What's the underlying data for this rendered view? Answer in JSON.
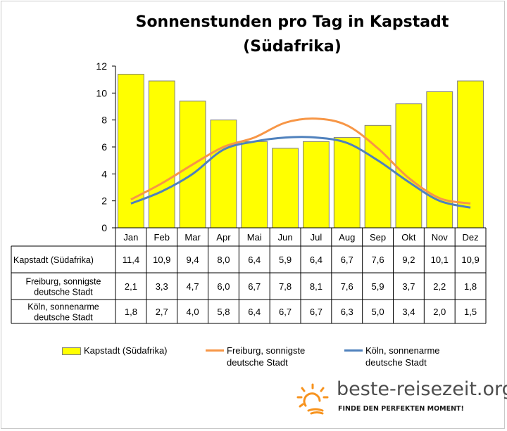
{
  "title": "Sonnenstunden pro Tag in Kapstadt (Südafrika)",
  "chart_data": {
    "type": "bar",
    "title": "Sonnenstunden pro Tag in Kapstadt (Südafrika)",
    "categories": [
      "Jan",
      "Feb",
      "Mar",
      "Apr",
      "Mai",
      "Jun",
      "Jul",
      "Aug",
      "Sep",
      "Okt",
      "Nov",
      "Dez"
    ],
    "ylim": [
      0,
      12
    ],
    "yticks": [
      0,
      2,
      4,
      6,
      8,
      10,
      12
    ],
    "grid": false,
    "legend_position": "bottom",
    "series": [
      {
        "name": "Kapstadt (Südafrika)",
        "type": "bar",
        "color": "#ffff00",
        "values": [
          11.4,
          10.9,
          9.4,
          8.0,
          6.4,
          5.9,
          6.4,
          6.7,
          7.6,
          9.2,
          10.1,
          10.9
        ],
        "labels": [
          "11,4",
          "10,9",
          "9,4",
          "8,0",
          "6,4",
          "5,9",
          "6,4",
          "6,7",
          "7,6",
          "9,2",
          "10,1",
          "10,9"
        ]
      },
      {
        "name": "Freiburg, sonnigste deutsche Stadt",
        "type": "line",
        "color": "#f79646",
        "values": [
          2.1,
          3.3,
          4.7,
          6.0,
          6.7,
          7.8,
          8.1,
          7.6,
          5.9,
          3.7,
          2.2,
          1.8
        ],
        "labels": [
          "2,1",
          "3,3",
          "4,7",
          "6,0",
          "6,7",
          "7,8",
          "8,1",
          "7,6",
          "5,9",
          "3,7",
          "2,2",
          "1,8"
        ]
      },
      {
        "name": "Köln, sonnenarme deutsche Stadt",
        "type": "line",
        "color": "#4f81bd",
        "values": [
          1.8,
          2.7,
          4.0,
          5.8,
          6.4,
          6.7,
          6.7,
          6.3,
          5.0,
          3.4,
          2.0,
          1.5
        ],
        "labels": [
          "1,8",
          "2,7",
          "4,0",
          "5,8",
          "6,4",
          "6,7",
          "6,7",
          "6,3",
          "5,0",
          "3,4",
          "2,0",
          "1,5"
        ]
      }
    ]
  },
  "table": {
    "row_labels": [
      [
        "Kapstadt (Südafrika)"
      ],
      [
        "Freiburg, sonnigste",
        "deutsche Stadt"
      ],
      [
        "Köln, sonnenarme",
        "deutsche Stadt"
      ]
    ]
  },
  "legend": {
    "kapstadt": "Kapstadt (Südafrika)",
    "freiburg_1": "Freiburg, sonnigste",
    "freiburg_2": "deutsche Stadt",
    "koeln_1": "Köln, sonnenarme",
    "koeln_2": "deutsche Stadt"
  },
  "brand": {
    "name": "beste-reisezeit.org",
    "tagline": "FINDE DEN PERFEKTEN MOMENT!",
    "sun_color": "#f7931e",
    "logo_icon": "sun-icon"
  }
}
